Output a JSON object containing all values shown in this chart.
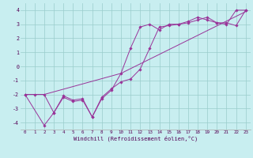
{
  "xlabel": "Windchill (Refroidissement éolien,°C)",
  "bg_color": "#c8eef0",
  "grid_color": "#99cccc",
  "line_color": "#993399",
  "xlim": [
    -0.5,
    23.5
  ],
  "ylim": [
    -4.5,
    4.5
  ],
  "xticks": [
    0,
    1,
    2,
    3,
    4,
    5,
    6,
    7,
    8,
    9,
    10,
    11,
    12,
    13,
    14,
    15,
    16,
    17,
    18,
    19,
    20,
    21,
    22,
    23
  ],
  "yticks": [
    -4,
    -3,
    -2,
    -1,
    0,
    1,
    2,
    3,
    4
  ],
  "line1_x": [
    0,
    1,
    2,
    3,
    4,
    5,
    6,
    7,
    8,
    9,
    10,
    11,
    12,
    13,
    14,
    15,
    16,
    17,
    18,
    19,
    20,
    21,
    22,
    23
  ],
  "line1_y": [
    -2.0,
    -2.0,
    -2.0,
    -3.3,
    -2.1,
    -2.4,
    -2.3,
    -3.6,
    -2.2,
    -1.6,
    -1.1,
    -0.9,
    -0.2,
    1.3,
    2.8,
    2.9,
    3.0,
    3.1,
    3.3,
    3.5,
    3.1,
    3.1,
    2.9,
    4.0
  ],
  "line2_x": [
    0,
    2,
    10,
    23
  ],
  "line2_y": [
    -2.0,
    -2.0,
    -0.5,
    3.9
  ],
  "line3_x": [
    0,
    2,
    3,
    4,
    5,
    6,
    7,
    8,
    9,
    10,
    11,
    12,
    13,
    14,
    15,
    16,
    17,
    18,
    19,
    20,
    21,
    22,
    23
  ],
  "line3_y": [
    -2.0,
    -4.2,
    -3.3,
    -2.2,
    -2.5,
    -2.4,
    -3.6,
    -2.3,
    -1.7,
    -0.5,
    1.3,
    2.8,
    3.0,
    2.6,
    3.0,
    3.0,
    3.2,
    3.5,
    3.3,
    3.1,
    3.0,
    4.0,
    4.0
  ]
}
